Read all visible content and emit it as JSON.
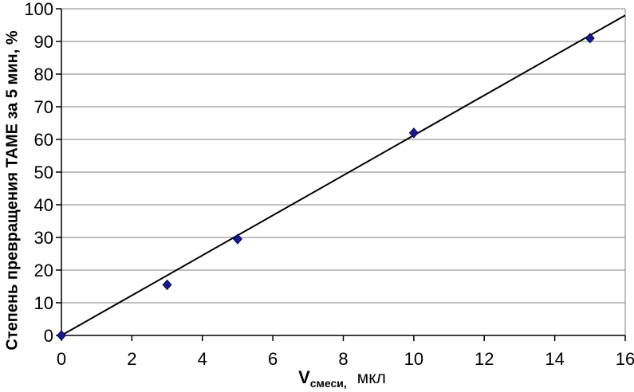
{
  "chart_data": {
    "type": "scatter",
    "title": "",
    "xlabel": {
      "symbol": "V",
      "subscript": "смеси,",
      "unit": "мкл"
    },
    "ylabel": "Степень превращения ТАМЕ за 5 мин, %",
    "xlim": [
      0,
      16
    ],
    "ylim": [
      0,
      100
    ],
    "x_ticks": [
      0,
      2,
      4,
      6,
      8,
      10,
      12,
      14,
      16
    ],
    "y_ticks": [
      0,
      10,
      20,
      30,
      40,
      50,
      60,
      70,
      80,
      90,
      100
    ],
    "grid": "horizontal-only",
    "legend": "none",
    "series": [
      {
        "marker": "diamond",
        "points": [
          [
            0,
            0
          ],
          [
            3,
            15.5
          ],
          [
            5,
            29.5
          ],
          [
            10,
            62
          ],
          [
            15,
            91
          ]
        ]
      }
    ],
    "trendline": {
      "x1": 0,
      "y1": 0,
      "x2": 16,
      "y2": 98
    },
    "colors": {
      "marker": "#1a1a8c",
      "marker_edge": "#000060",
      "trendline": "#000000",
      "grid": "#808080",
      "axis": "#000000",
      "text": "#000000",
      "background": "#ffffff"
    }
  }
}
